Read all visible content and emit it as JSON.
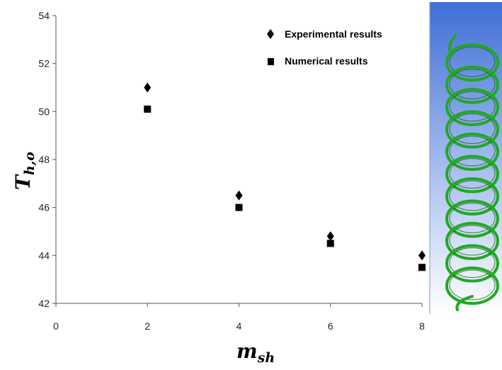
{
  "chart_data": {
    "type": "scatter",
    "xlabel": "m",
    "xlabel_sub": "sh",
    "ylabel": "T",
    "ylabel_sub": "h,o",
    "xlim": [
      0,
      8
    ],
    "ylim": [
      42,
      54
    ],
    "xticks": [
      0,
      2,
      4,
      6,
      8
    ],
    "yticks": [
      42,
      44,
      46,
      48,
      50,
      52,
      54
    ],
    "grid": false,
    "legend_position": "top-right",
    "series": [
      {
        "name": "Experimental results",
        "marker": "diamond",
        "color": "#000000",
        "x": [
          2,
          4,
          6,
          8
        ],
        "y": [
          51.0,
          46.5,
          44.8,
          44.0
        ]
      },
      {
        "name": "Numerical results",
        "marker": "square",
        "color": "#000000",
        "x": [
          2,
          4,
          6,
          8
        ],
        "y": [
          50.1,
          46.0,
          44.5,
          43.5
        ]
      }
    ]
  },
  "coil_image": {
    "background_top": "#3f6fd6",
    "background_bottom": "#ffffff",
    "coil_color": "#22a822"
  }
}
